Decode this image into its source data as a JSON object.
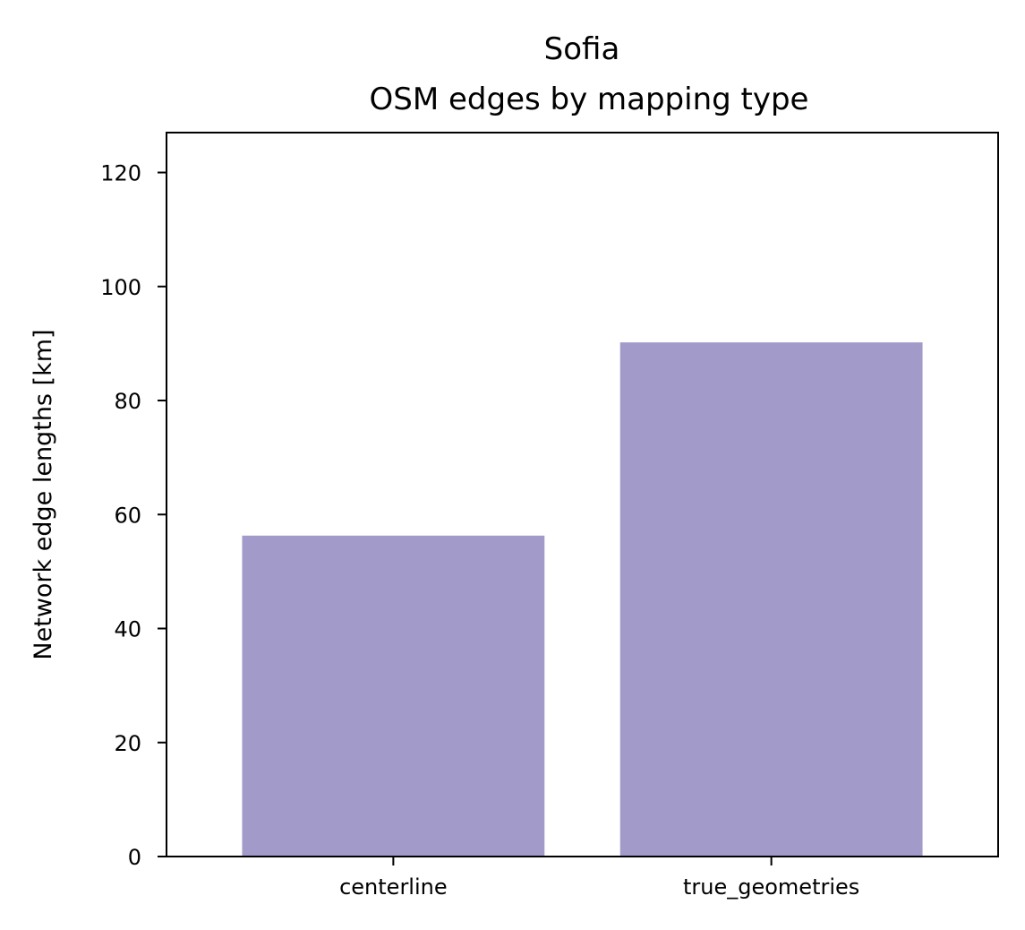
{
  "chart_data": {
    "type": "bar",
    "title_lines": [
      "Sofia",
      "OSM edges by mapping type"
    ],
    "xlabel": "",
    "ylabel": "Network edge lengths [km]",
    "categories": [
      "centerline",
      "true_geometries"
    ],
    "values": [
      56.3,
      90.2
    ],
    "ylim": [
      0,
      127
    ],
    "yticks": [
      0,
      20,
      40,
      60,
      80,
      100,
      120
    ],
    "ytick_labels": [
      "0",
      "20",
      "40",
      "60",
      "80",
      "100",
      "120"
    ],
    "bar_color": "#a29bca",
    "grid": false,
    "legend": "none"
  }
}
